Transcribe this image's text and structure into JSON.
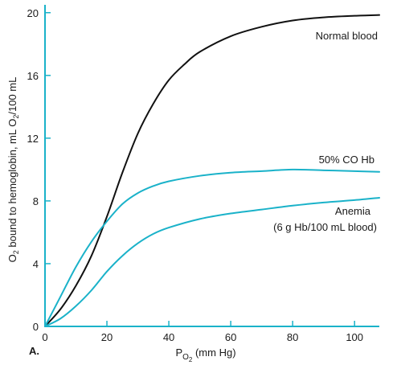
{
  "chart_data": {
    "type": "line",
    "panel_label": "A.",
    "xlabel": {
      "main": "P",
      "sub1": "O",
      "sub2": "2",
      "unit": " (mm Hg)"
    },
    "ylabel": {
      "part1": "O",
      "sub1": "2",
      "part2": " bound to hemoglobin, mL O",
      "sub2": "2",
      "part3": "/100 mL"
    },
    "xlim": [
      0,
      108
    ],
    "ylim": [
      0,
      20.5
    ],
    "xticks": [
      0,
      20,
      40,
      60,
      80,
      100
    ],
    "yticks": [
      0,
      4,
      8,
      12,
      16,
      20
    ],
    "grid": false,
    "axis_color": "#1ab2c9",
    "series": [
      {
        "name": "Normal blood",
        "color": "#111111",
        "x": [
          0,
          5,
          10,
          15,
          20,
          25,
          30,
          35,
          40,
          45,
          50,
          60,
          70,
          80,
          90,
          100,
          108
        ],
        "y": [
          0,
          1.1,
          2.6,
          4.5,
          7.0,
          9.8,
          12.3,
          14.2,
          15.7,
          16.7,
          17.5,
          18.5,
          19.1,
          19.5,
          19.7,
          19.8,
          19.85
        ]
      },
      {
        "name": "50% CO Hb",
        "color": "#1ab2c9",
        "x": [
          0,
          5,
          10,
          15,
          20,
          25,
          30,
          35,
          40,
          50,
          60,
          70,
          80,
          90,
          100,
          108
        ],
        "y": [
          0,
          1.9,
          3.8,
          5.4,
          6.7,
          7.8,
          8.5,
          8.95,
          9.25,
          9.6,
          9.8,
          9.9,
          10.0,
          9.95,
          9.9,
          9.85
        ]
      },
      {
        "name": "Anemia",
        "note": "(6 g Hb/100 mL blood)",
        "color": "#1ab2c9",
        "x": [
          0,
          5,
          10,
          15,
          20,
          25,
          30,
          35,
          40,
          50,
          60,
          70,
          80,
          90,
          100,
          108
        ],
        "y": [
          0,
          0.5,
          1.3,
          2.3,
          3.5,
          4.5,
          5.3,
          5.9,
          6.3,
          6.85,
          7.2,
          7.45,
          7.7,
          7.9,
          8.05,
          8.2
        ]
      }
    ]
  }
}
